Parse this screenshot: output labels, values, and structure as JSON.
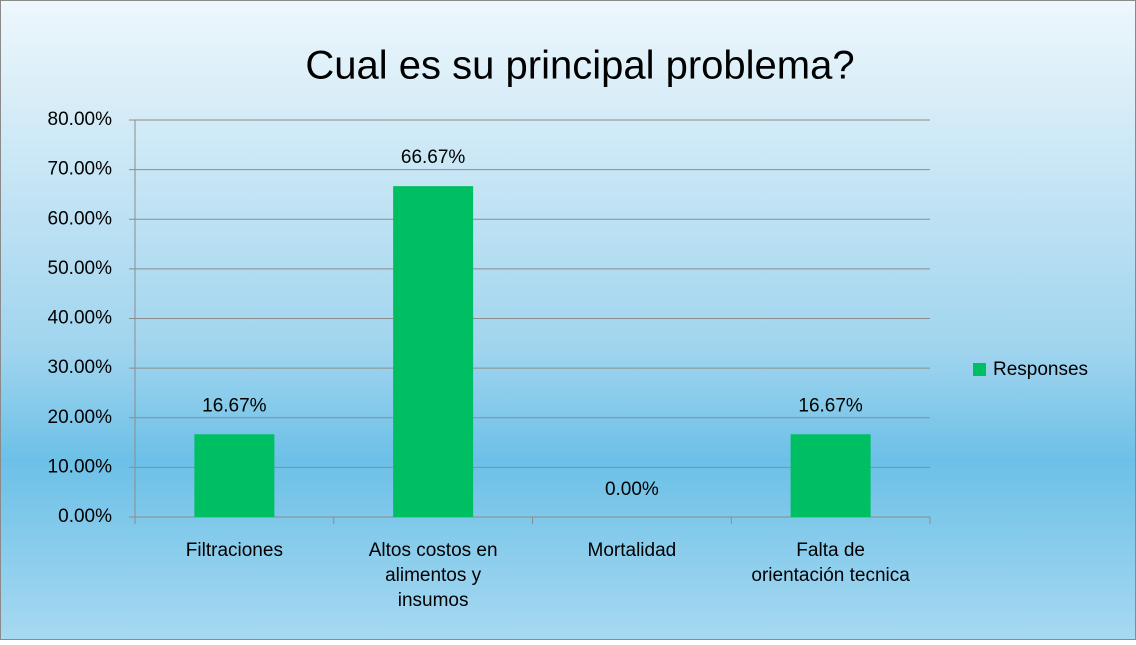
{
  "chart_data": {
    "type": "bar",
    "title": "Cual es su principal problema?",
    "categories": [
      "Filtraciones",
      "Altos costos en alimentos y insumos",
      "Mortalidad",
      "Falta de orientación tecnica"
    ],
    "series": [
      {
        "name": "Responses",
        "color": "#00bf63",
        "values": [
          16.67,
          66.67,
          0,
          16.67
        ],
        "value_labels": [
          "16.67%",
          "66.67%",
          "0.00%",
          "16.67%"
        ]
      }
    ],
    "ylim": [
      0,
      80
    ],
    "yticks": [
      {
        "value": 0,
        "label": "0.00%"
      },
      {
        "value": 10,
        "label": "10.00%"
      },
      {
        "value": 20,
        "label": "20.00%"
      },
      {
        "value": 30,
        "label": "30.00%"
      },
      {
        "value": 40,
        "label": "40.00%"
      },
      {
        "value": 50,
        "label": "50.00%"
      },
      {
        "value": 60,
        "label": "60.00%"
      },
      {
        "value": 70,
        "label": "70.00%"
      },
      {
        "value": 80,
        "label": "80.00%"
      }
    ],
    "grid": true,
    "legend": "right"
  }
}
